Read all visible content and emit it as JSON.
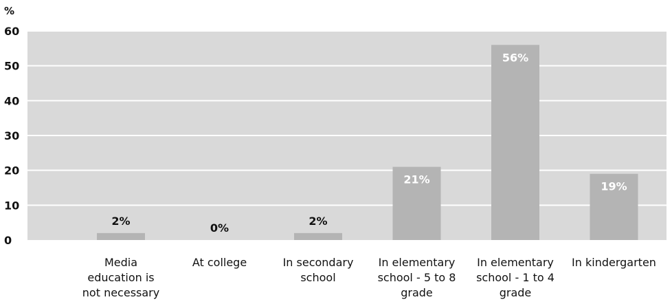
{
  "chart_data": {
    "type": "bar",
    "ylabel": "%",
    "ylim": [
      0,
      60
    ],
    "yticks": [
      0,
      10,
      20,
      30,
      40,
      50,
      60
    ],
    "grid": true,
    "categories": [
      "Media education is not necessary",
      "At college",
      "In secondary school",
      "In elementary school - 5 to 8 grade",
      "In elementary school - 1 to 4 grade",
      "In kindergarten"
    ],
    "category_lines": [
      [
        "Media",
        "education is",
        "not necessary"
      ],
      [
        "At college"
      ],
      [
        "In secondary",
        "school"
      ],
      [
        "In elementary",
        "school - 5 to 8",
        "grade"
      ],
      [
        "In elementary",
        "school - 1 to 4",
        "grade"
      ],
      [
        "In kindergarten"
      ]
    ],
    "values": [
      2,
      0,
      2,
      21,
      56,
      19
    ],
    "data_labels": [
      "2%",
      "0%",
      "2%",
      "21%",
      "56%",
      "19%"
    ],
    "colors": {
      "plot_background": "#d9d9d9",
      "gridline": "#ffffff",
      "bar": "#b4b4b4",
      "label_dark": "#111111",
      "label_light": "#ffffff"
    }
  }
}
